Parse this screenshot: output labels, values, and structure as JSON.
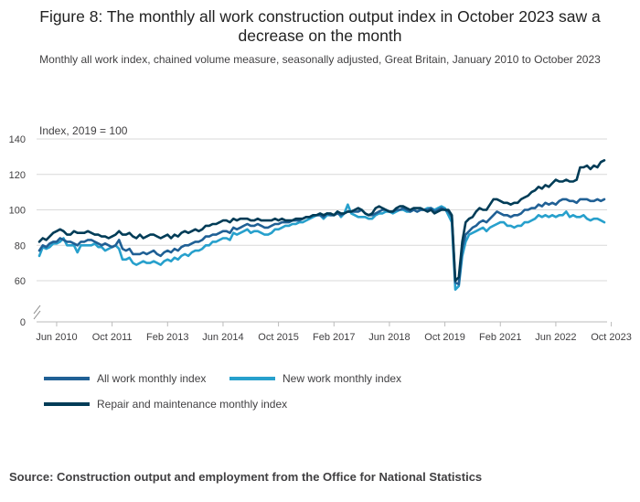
{
  "title": "Figure 8: The monthly all work construction output index in October 2023 saw a decrease on the month",
  "subtitle": "Monthly all work index, chained volume measure, seasonally adjusted, Great Britain, January 2010 to October 2023",
  "source": "Source: Construction output and employment from the Office for National Statistics",
  "chart_data": {
    "type": "line",
    "ylabel": "Index, 2019 = 100",
    "xlabel": "",
    "ylim": [
      0,
      140
    ],
    "y_ticks": [
      "0",
      "60",
      "80",
      "100",
      "120",
      "140"
    ],
    "y_axis_break": true,
    "x_range": [
      "Jan 2010",
      "Oct 2023"
    ],
    "x_tick_labels": [
      "Jun 2010",
      "Oct 2011",
      "Feb 2013",
      "Jun 2014",
      "Oct 2015",
      "Feb 2017",
      "Jun 2018",
      "Oct 2019",
      "Feb 2021",
      "Jun 2022",
      "Oct 2023"
    ],
    "grid": "horizontal",
    "legend_position": "bottom",
    "series": [
      {
        "name": "All work monthly index",
        "color": "#206095",
        "values": [
          77,
          80,
          79,
          81,
          82,
          82,
          84,
          83,
          82,
          82,
          81,
          80,
          82,
          82,
          83,
          83,
          82,
          81,
          80,
          81,
          80,
          79,
          80,
          83,
          78,
          77,
          78,
          75,
          75,
          75,
          76,
          75,
          76,
          77,
          75,
          74,
          76,
          77,
          76,
          78,
          77,
          79,
          80,
          80,
          81,
          82,
          82,
          83,
          85,
          85,
          86,
          86,
          87,
          88,
          88,
          87,
          90,
          89,
          90,
          91,
          92,
          91,
          91,
          92,
          91,
          90,
          90,
          91,
          92,
          92,
          93,
          93,
          93,
          94,
          94,
          94,
          95,
          96,
          96,
          97,
          97,
          97,
          96,
          98,
          97,
          97,
          98,
          97,
          98,
          99,
          99,
          99,
          99,
          100,
          98,
          97,
          97,
          98,
          99,
          100,
          100,
          99,
          99,
          100,
          100,
          101,
          100,
          99,
          100,
          99,
          100,
          100,
          100,
          101,
          99,
          100,
          101,
          100,
          99,
          96,
          59,
          58,
          78,
          86,
          88,
          90,
          91,
          93,
          94,
          93,
          95,
          97,
          99,
          98,
          97,
          97,
          96,
          97,
          97,
          98,
          100,
          100,
          101,
          101,
          103,
          102,
          104,
          103,
          104,
          103,
          105,
          106,
          106,
          105,
          105,
          104,
          106,
          106,
          106,
          105,
          105,
          106,
          105,
          106
        ]
      },
      {
        "name": "New work monthly index",
        "color": "#27a0cc",
        "values": [
          74,
          79,
          78,
          79,
          81,
          81,
          82,
          84,
          80,
          80,
          80,
          76,
          80,
          80,
          80,
          80,
          81,
          79,
          79,
          77,
          78,
          79,
          80,
          78,
          72,
          72,
          73,
          70,
          69,
          70,
          71,
          70,
          70,
          71,
          70,
          69,
          71,
          72,
          71,
          73,
          72,
          74,
          75,
          74,
          76,
          77,
          77,
          78,
          80,
          80,
          82,
          82,
          83,
          84,
          84,
          83,
          87,
          86,
          87,
          88,
          89,
          87,
          88,
          88,
          87,
          86,
          86,
          87,
          89,
          89,
          90,
          91,
          91,
          92,
          92,
          93,
          93,
          94,
          95,
          96,
          97,
          97,
          95,
          97,
          97,
          97,
          99,
          96,
          98,
          103,
          98,
          97,
          96,
          96,
          96,
          95,
          95,
          97,
          98,
          98,
          99,
          99,
          98,
          99,
          100,
          100,
          99,
          99,
          100,
          99,
          100,
          100,
          101,
          101,
          100,
          101,
          102,
          101,
          97,
          93,
          55,
          57,
          74,
          82,
          86,
          87,
          88,
          89,
          90,
          88,
          90,
          91,
          92,
          93,
          93,
          91,
          91,
          90,
          91,
          91,
          93,
          93,
          94,
          95,
          97,
          96,
          97,
          96,
          97,
          96,
          97,
          97,
          99,
          96,
          97,
          96,
          96,
          97,
          95,
          94,
          95,
          95,
          94,
          93
        ]
      },
      {
        "name": "Repair and maintenance monthly index",
        "color": "#003c57",
        "values": [
          82,
          84,
          83,
          85,
          87,
          88,
          89,
          88,
          86,
          86,
          88,
          87,
          87,
          87,
          88,
          87,
          86,
          86,
          85,
          85,
          84,
          85,
          86,
          88,
          86,
          86,
          87,
          85,
          84,
          86,
          84,
          85,
          86,
          86,
          85,
          84,
          85,
          86,
          84,
          86,
          85,
          87,
          88,
          87,
          88,
          89,
          88,
          89,
          91,
          91,
          92,
          92,
          93,
          94,
          94,
          93,
          95,
          94,
          95,
          95,
          95,
          94,
          94,
          95,
          94,
          94,
          94,
          94,
          95,
          94,
          95,
          94,
          94,
          94,
          95,
          95,
          95,
          96,
          96,
          97,
          97,
          98,
          97,
          98,
          98,
          97,
          99,
          98,
          98,
          99,
          99,
          100,
          101,
          100,
          98,
          97,
          98,
          101,
          102,
          101,
          100,
          99,
          99,
          101,
          102,
          102,
          101,
          100,
          101,
          101,
          101,
          100,
          99,
          100,
          98,
          99,
          100,
          100,
          100,
          97,
          60,
          62,
          82,
          93,
          95,
          96,
          99,
          101,
          100,
          100,
          103,
          106,
          106,
          105,
          104,
          104,
          103,
          104,
          104,
          106,
          107,
          108,
          110,
          111,
          113,
          112,
          114,
          113,
          115,
          117,
          116,
          116,
          117,
          116,
          116,
          117,
          124,
          124,
          125,
          123,
          125,
          124,
          127,
          128
        ]
      }
    ]
  }
}
